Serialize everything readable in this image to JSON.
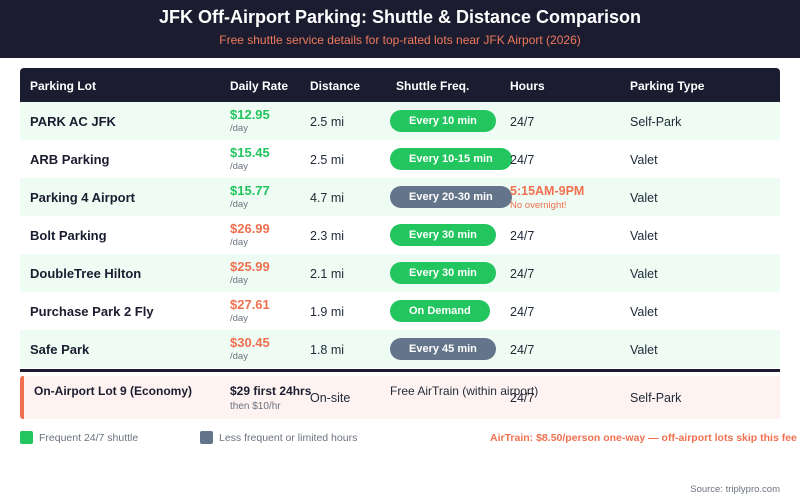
{
  "header": {
    "title": "JFK Off-Airport Parking: Shuttle & Distance Comparison",
    "subtitle": "Free shuttle service details for top-rated lots near JFK Airport (2026)"
  },
  "table": {
    "columns": [
      "Parking Lot",
      "Daily Rate",
      "Distance",
      "Shuttle Freq.",
      "Hours",
      "Parking Type"
    ],
    "rows": [
      {
        "name": "PARK AC JFK",
        "rate": "$12.95",
        "per": "/day",
        "rate_tier": "cheap",
        "distance": "2.5 mi",
        "shuttle": "Every 10 min",
        "shuttle_tier": "green",
        "hours": "24/7",
        "hours_note": "",
        "type": "Self-Park"
      },
      {
        "name": "ARB Parking",
        "rate": "$15.45",
        "per": "/day",
        "rate_tier": "cheap",
        "distance": "2.5 mi",
        "shuttle": "Every 10-15 min",
        "shuttle_tier": "green",
        "hours": "24/7",
        "hours_note": "",
        "type": "Valet"
      },
      {
        "name": "Parking 4 Airport",
        "rate": "$15.77",
        "per": "/day",
        "rate_tier": "cheap",
        "distance": "4.7 mi",
        "shuttle": "Every 20-30 min",
        "shuttle_tier": "slate",
        "hours": "5:15AM-9PM",
        "hours_note": "No overnight!",
        "type": "Valet"
      },
      {
        "name": "Bolt Parking",
        "rate": "$26.99",
        "per": "/day",
        "rate_tier": "pricey",
        "distance": "2.3 mi",
        "shuttle": "Every 30 min",
        "shuttle_tier": "green",
        "hours": "24/7",
        "hours_note": "",
        "type": "Valet"
      },
      {
        "name": "DoubleTree Hilton",
        "rate": "$25.99",
        "per": "/day",
        "rate_tier": "pricey",
        "distance": "2.1 mi",
        "shuttle": "Every 30 min",
        "shuttle_tier": "green",
        "hours": "24/7",
        "hours_note": "",
        "type": "Valet"
      },
      {
        "name": "Purchase Park 2 Fly",
        "rate": "$27.61",
        "per": "/day",
        "rate_tier": "pricey",
        "distance": "1.9 mi",
        "shuttle": "On Demand",
        "shuttle_tier": "green",
        "hours": "24/7",
        "hours_note": "",
        "type": "Valet"
      },
      {
        "name": "Safe Park",
        "rate": "$30.45",
        "per": "/day",
        "rate_tier": "pricey",
        "distance": "1.8 mi",
        "shuttle": "Every 45 min",
        "shuttle_tier": "slate",
        "hours": "24/7",
        "hours_note": "",
        "type": "Valet"
      }
    ],
    "on_airport": {
      "name": "On-Airport Lot 9 (Economy)",
      "rate": "$29 first 24hrs",
      "rate_sub": "then $10/hr",
      "distance": "On-site",
      "shuttle": "Free AirTrain (within airport)",
      "hours": "24/7",
      "type": "Self-Park"
    }
  },
  "legend": {
    "items": [
      {
        "label": "Frequent 24/7 shuttle",
        "color": "#22c55e"
      },
      {
        "label": "Less frequent or limited hours",
        "color": "#64748b"
      }
    ],
    "note": "AirTrain: $8.50/person one-way — off-airport lots skip this fee"
  },
  "footer": {
    "source": "Source: triplypro.com"
  },
  "colors": {
    "header_bg": "#1b1c30",
    "accent_orange": "#f07050",
    "green": "#22c55e",
    "slate": "#64748b",
    "row_alt": "#eefcf3",
    "on_airport_bg": "#fef3f1"
  }
}
